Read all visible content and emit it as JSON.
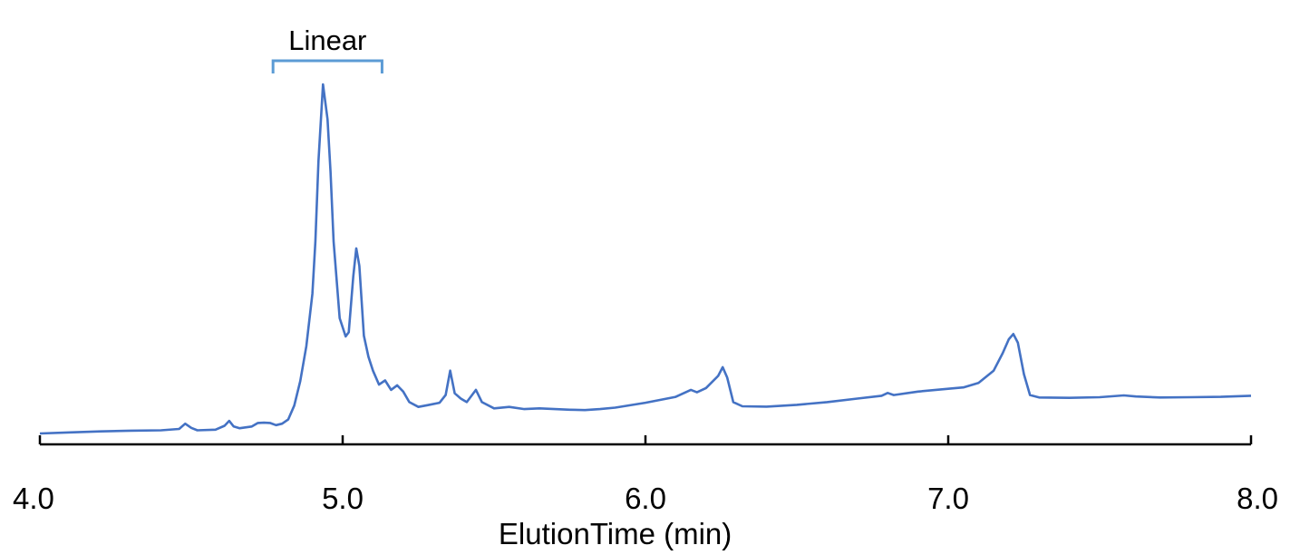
{
  "chart_data": {
    "type": "line",
    "xlabel": "ElutionTime (min)",
    "ylabel": "",
    "xlim": [
      4.0,
      8.0
    ],
    "ylim": [
      0,
      100
    ],
    "x_ticks": [
      4.0,
      5.0,
      6.0,
      7.0,
      8.0
    ],
    "x_tick_labels": [
      "4.0",
      "5.0",
      "6.0",
      "7.0",
      "8.0"
    ],
    "grid": false,
    "y_axis_visible": false,
    "line_color": "#4472C4",
    "annotation": {
      "label": "Linear",
      "x_start": 4.77,
      "x_end": 5.13,
      "color": "#5B9BD5"
    },
    "series": [
      {
        "values": [
          [
            4.0,
            0.0
          ],
          [
            4.1,
            0.3
          ],
          [
            4.2,
            0.6
          ],
          [
            4.3,
            0.8
          ],
          [
            4.4,
            0.9
          ],
          [
            4.46,
            1.3
          ],
          [
            4.48,
            2.8
          ],
          [
            4.5,
            1.6
          ],
          [
            4.52,
            0.9
          ],
          [
            4.58,
            1.1
          ],
          [
            4.61,
            2.2
          ],
          [
            4.625,
            3.6
          ],
          [
            4.64,
            2.0
          ],
          [
            4.66,
            1.5
          ],
          [
            4.7,
            2.0
          ],
          [
            4.72,
            3.0
          ],
          [
            4.74,
            3.1
          ],
          [
            4.76,
            3.0
          ],
          [
            4.78,
            2.4
          ],
          [
            4.8,
            2.8
          ],
          [
            4.82,
            4.0
          ],
          [
            4.84,
            8.0
          ],
          [
            4.86,
            15.0
          ],
          [
            4.88,
            25.0
          ],
          [
            4.9,
            40.0
          ],
          [
            4.91,
            55.0
          ],
          [
            4.92,
            78.0
          ],
          [
            4.935,
            100.0
          ],
          [
            4.95,
            90.0
          ],
          [
            4.96,
            75.0
          ],
          [
            4.97,
            55.0
          ],
          [
            4.99,
            33.0
          ],
          [
            5.01,
            27.8
          ],
          [
            5.02,
            29.0
          ],
          [
            5.035,
            45.0
          ],
          [
            5.045,
            53.0
          ],
          [
            5.055,
            48.0
          ],
          [
            5.07,
            28.0
          ],
          [
            5.085,
            22.0
          ],
          [
            5.1,
            18.0
          ],
          [
            5.12,
            14.0
          ],
          [
            5.14,
            15.2
          ],
          [
            5.16,
            12.5
          ],
          [
            5.18,
            13.8
          ],
          [
            5.2,
            12.0
          ],
          [
            5.22,
            9.0
          ],
          [
            5.25,
            7.6
          ],
          [
            5.28,
            8.1
          ],
          [
            5.32,
            8.8
          ],
          [
            5.34,
            11.0
          ],
          [
            5.355,
            18.0
          ],
          [
            5.37,
            11.5
          ],
          [
            5.39,
            10.0
          ],
          [
            5.41,
            9.0
          ],
          [
            5.44,
            12.5
          ],
          [
            5.46,
            9.0
          ],
          [
            5.5,
            7.2
          ],
          [
            5.55,
            7.6
          ],
          [
            5.6,
            7.0
          ],
          [
            5.65,
            7.2
          ],
          [
            5.7,
            7.0
          ],
          [
            5.75,
            6.8
          ],
          [
            5.8,
            6.7
          ],
          [
            5.85,
            7.0
          ],
          [
            5.9,
            7.4
          ],
          [
            6.0,
            8.8
          ],
          [
            6.1,
            10.5
          ],
          [
            6.15,
            12.5
          ],
          [
            6.17,
            11.8
          ],
          [
            6.2,
            13.0
          ],
          [
            6.24,
            16.5
          ],
          [
            6.255,
            19.0
          ],
          [
            6.27,
            16.0
          ],
          [
            6.29,
            9.0
          ],
          [
            6.32,
            7.8
          ],
          [
            6.4,
            7.7
          ],
          [
            6.5,
            8.2
          ],
          [
            6.6,
            9.0
          ],
          [
            6.7,
            10.0
          ],
          [
            6.78,
            10.8
          ],
          [
            6.8,
            11.6
          ],
          [
            6.82,
            11.0
          ],
          [
            6.9,
            12.0
          ],
          [
            7.0,
            12.8
          ],
          [
            7.05,
            13.2
          ],
          [
            7.1,
            14.5
          ],
          [
            7.15,
            18.0
          ],
          [
            7.18,
            23.0
          ],
          [
            7.2,
            27.0
          ],
          [
            7.215,
            28.5
          ],
          [
            7.23,
            26.0
          ],
          [
            7.25,
            17.0
          ],
          [
            7.27,
            11.0
          ],
          [
            7.3,
            10.3
          ],
          [
            7.4,
            10.2
          ],
          [
            7.5,
            10.4
          ],
          [
            7.58,
            10.9
          ],
          [
            7.62,
            10.6
          ],
          [
            7.7,
            10.3
          ],
          [
            7.8,
            10.4
          ],
          [
            7.9,
            10.5
          ],
          [
            8.0,
            10.8
          ]
        ]
      }
    ]
  }
}
